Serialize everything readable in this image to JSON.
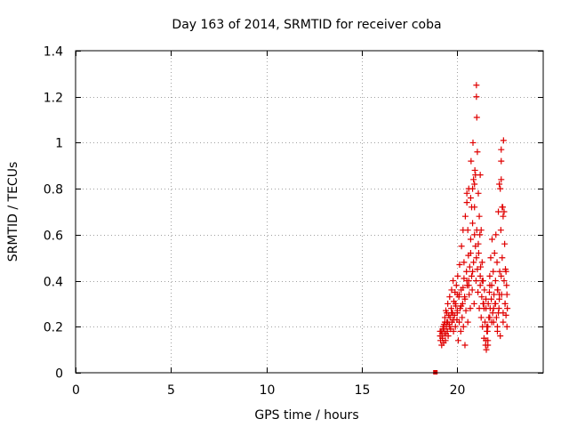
{
  "chart_data": {
    "type": "scatter",
    "title": "Day 163 of 2014, SRMTID for receiver coba",
    "xlabel": "GPS time / hours",
    "ylabel": "SRMTID / TECUs",
    "xlim": [
      0,
      24.5
    ],
    "ylim": [
      0,
      1.4
    ],
    "xticks": [
      0,
      5,
      10,
      15,
      20
    ],
    "yticks": [
      0,
      0.2,
      0.4,
      0.6,
      0.8,
      1,
      1.2,
      1.4
    ],
    "xtick_labels": [
      "0",
      "5",
      "10",
      "15",
      "20"
    ],
    "ytick_labels": [
      "0",
      "0.2",
      "0.4",
      "0.6",
      "0.8",
      "1",
      "1.2",
      "1.4"
    ],
    "grid": true,
    "marker": "+",
    "color": "#e00000",
    "series": [
      {
        "name": "SRMTID",
        "x": [
          18.85,
          19.1,
          19.12,
          19.15,
          19.18,
          19.2,
          19.22,
          19.25,
          19.28,
          19.3,
          19.32,
          19.35,
          19.38,
          19.4,
          19.42,
          19.45,
          19.48,
          19.5,
          19.52,
          19.55,
          19.58,
          19.6,
          19.62,
          19.65,
          19.68,
          19.7,
          19.72,
          19.75,
          19.78,
          19.8,
          19.82,
          19.85,
          19.88,
          19.9,
          19.92,
          19.95,
          19.98,
          20.0,
          20.02,
          20.05,
          20.08,
          20.1,
          20.12,
          20.15,
          20.18,
          20.2,
          20.22,
          20.25,
          20.28,
          20.3,
          20.32,
          20.35,
          20.38,
          20.4,
          20.42,
          20.45,
          20.48,
          20.5,
          20.52,
          20.55,
          20.58,
          20.6,
          20.62,
          20.65,
          20.68,
          20.7,
          20.72,
          20.75,
          20.78,
          20.8,
          20.82,
          20.85,
          20.88,
          20.9,
          20.92,
          20.95,
          20.98,
          21.0,
          21.02,
          21.05,
          21.08,
          21.1,
          21.12,
          21.15,
          21.18,
          21.2,
          21.22,
          21.25,
          21.28,
          21.3,
          21.32,
          21.35,
          21.38,
          21.4,
          21.42,
          21.45,
          21.48,
          21.5,
          21.52,
          21.55,
          21.58,
          21.6,
          21.62,
          21.65,
          21.68,
          21.7,
          21.72,
          21.75,
          21.78,
          21.8,
          21.82,
          21.85,
          21.88,
          21.9,
          21.92,
          21.95,
          21.98,
          22.0,
          22.02,
          22.05,
          22.08,
          22.1,
          22.12,
          22.15,
          22.18,
          22.2,
          22.22,
          22.25,
          22.28,
          22.3,
          22.32,
          22.35,
          22.38,
          22.4,
          22.42,
          22.45,
          22.48,
          22.5,
          22.52,
          22.55,
          22.58,
          22.6,
          22.62,
          19.3,
          19.5,
          19.7,
          19.9,
          20.1,
          20.3,
          20.5,
          20.7,
          20.9,
          21.1,
          21.3,
          21.5,
          21.7,
          21.9,
          22.1,
          22.3,
          22.5,
          19.4,
          19.6,
          19.8,
          20.0,
          20.2,
          20.4,
          20.6,
          20.8,
          21.0,
          21.2,
          21.4,
          21.6,
          21.8,
          22.0,
          22.2,
          22.4,
          22.6,
          20.9,
          20.95,
          21.0,
          21.02,
          21.05,
          20.7,
          20.75,
          20.8,
          20.85,
          20.5,
          20.55,
          22.25,
          22.3,
          22.35,
          22.4,
          22.45,
          22.3,
          21.15,
          21.2,
          21.25,
          19.1,
          19.2,
          19.25,
          19.35,
          19.45,
          21.5,
          21.55,
          21.6,
          22.1,
          22.15,
          22.2,
          20.0,
          20.35,
          20.6,
          21.35,
          21.7,
          22.55
        ],
        "y": [
          0.0,
          0.16,
          0.14,
          0.18,
          0.12,
          0.17,
          0.15,
          0.19,
          0.13,
          0.21,
          0.17,
          0.24,
          0.14,
          0.27,
          0.2,
          0.22,
          0.18,
          0.3,
          0.16,
          0.25,
          0.21,
          0.33,
          0.24,
          0.19,
          0.28,
          0.36,
          0.22,
          0.26,
          0.4,
          0.18,
          0.31,
          0.25,
          0.35,
          0.2,
          0.29,
          0.38,
          0.23,
          0.27,
          0.42,
          0.14,
          0.33,
          0.22,
          0.47,
          0.28,
          0.18,
          0.36,
          0.55,
          0.24,
          0.3,
          0.62,
          0.2,
          0.41,
          0.33,
          0.12,
          0.68,
          0.27,
          0.44,
          0.74,
          0.38,
          0.22,
          0.51,
          0.8,
          0.34,
          0.46,
          0.28,
          0.58,
          0.92,
          0.42,
          0.36,
          0.65,
          1.0,
          0.48,
          0.3,
          0.72,
          0.88,
          0.55,
          0.4,
          1.25,
          0.62,
          0.45,
          0.35,
          0.78,
          0.52,
          0.28,
          0.6,
          0.38,
          0.46,
          0.24,
          0.33,
          0.48,
          0.2,
          0.4,
          0.3,
          0.15,
          0.36,
          0.22,
          0.12,
          0.28,
          0.1,
          0.2,
          0.18,
          0.14,
          0.3,
          0.24,
          0.35,
          0.42,
          0.28,
          0.5,
          0.32,
          0.38,
          0.58,
          0.26,
          0.44,
          0.22,
          0.34,
          0.52,
          0.3,
          0.4,
          0.6,
          0.24,
          0.48,
          0.18,
          0.36,
          0.7,
          0.28,
          0.82,
          0.44,
          0.16,
          0.62,
          0.92,
          0.34,
          0.5,
          0.72,
          0.22,
          1.01,
          0.4,
          0.56,
          0.3,
          0.45,
          0.25,
          0.38,
          0.2,
          0.28,
          0.19,
          0.22,
          0.26,
          0.3,
          0.34,
          0.37,
          0.4,
          0.52,
          0.6,
          0.56,
          0.4,
          0.32,
          0.24,
          0.28,
          0.36,
          0.42,
          0.3,
          0.17,
          0.2,
          0.23,
          0.26,
          0.29,
          0.32,
          0.38,
          0.44,
          0.5,
          0.42,
          0.28,
          0.2,
          0.22,
          0.3,
          0.34,
          0.26,
          0.34,
          0.82,
          0.86,
          1.2,
          1.11,
          0.96,
          0.76,
          0.72,
          0.8,
          0.84,
          0.78,
          0.62,
          0.8,
          0.84,
          0.72,
          0.68,
          0.7,
          0.97,
          0.68,
          0.86,
          0.62,
          0.18,
          0.16,
          0.2,
          0.22,
          0.26,
          0.14,
          0.18,
          0.12,
          0.2,
          0.26,
          0.32,
          0.34,
          0.48,
          0.4,
          0.3,
          0.38,
          0.44
        ]
      }
    ]
  }
}
